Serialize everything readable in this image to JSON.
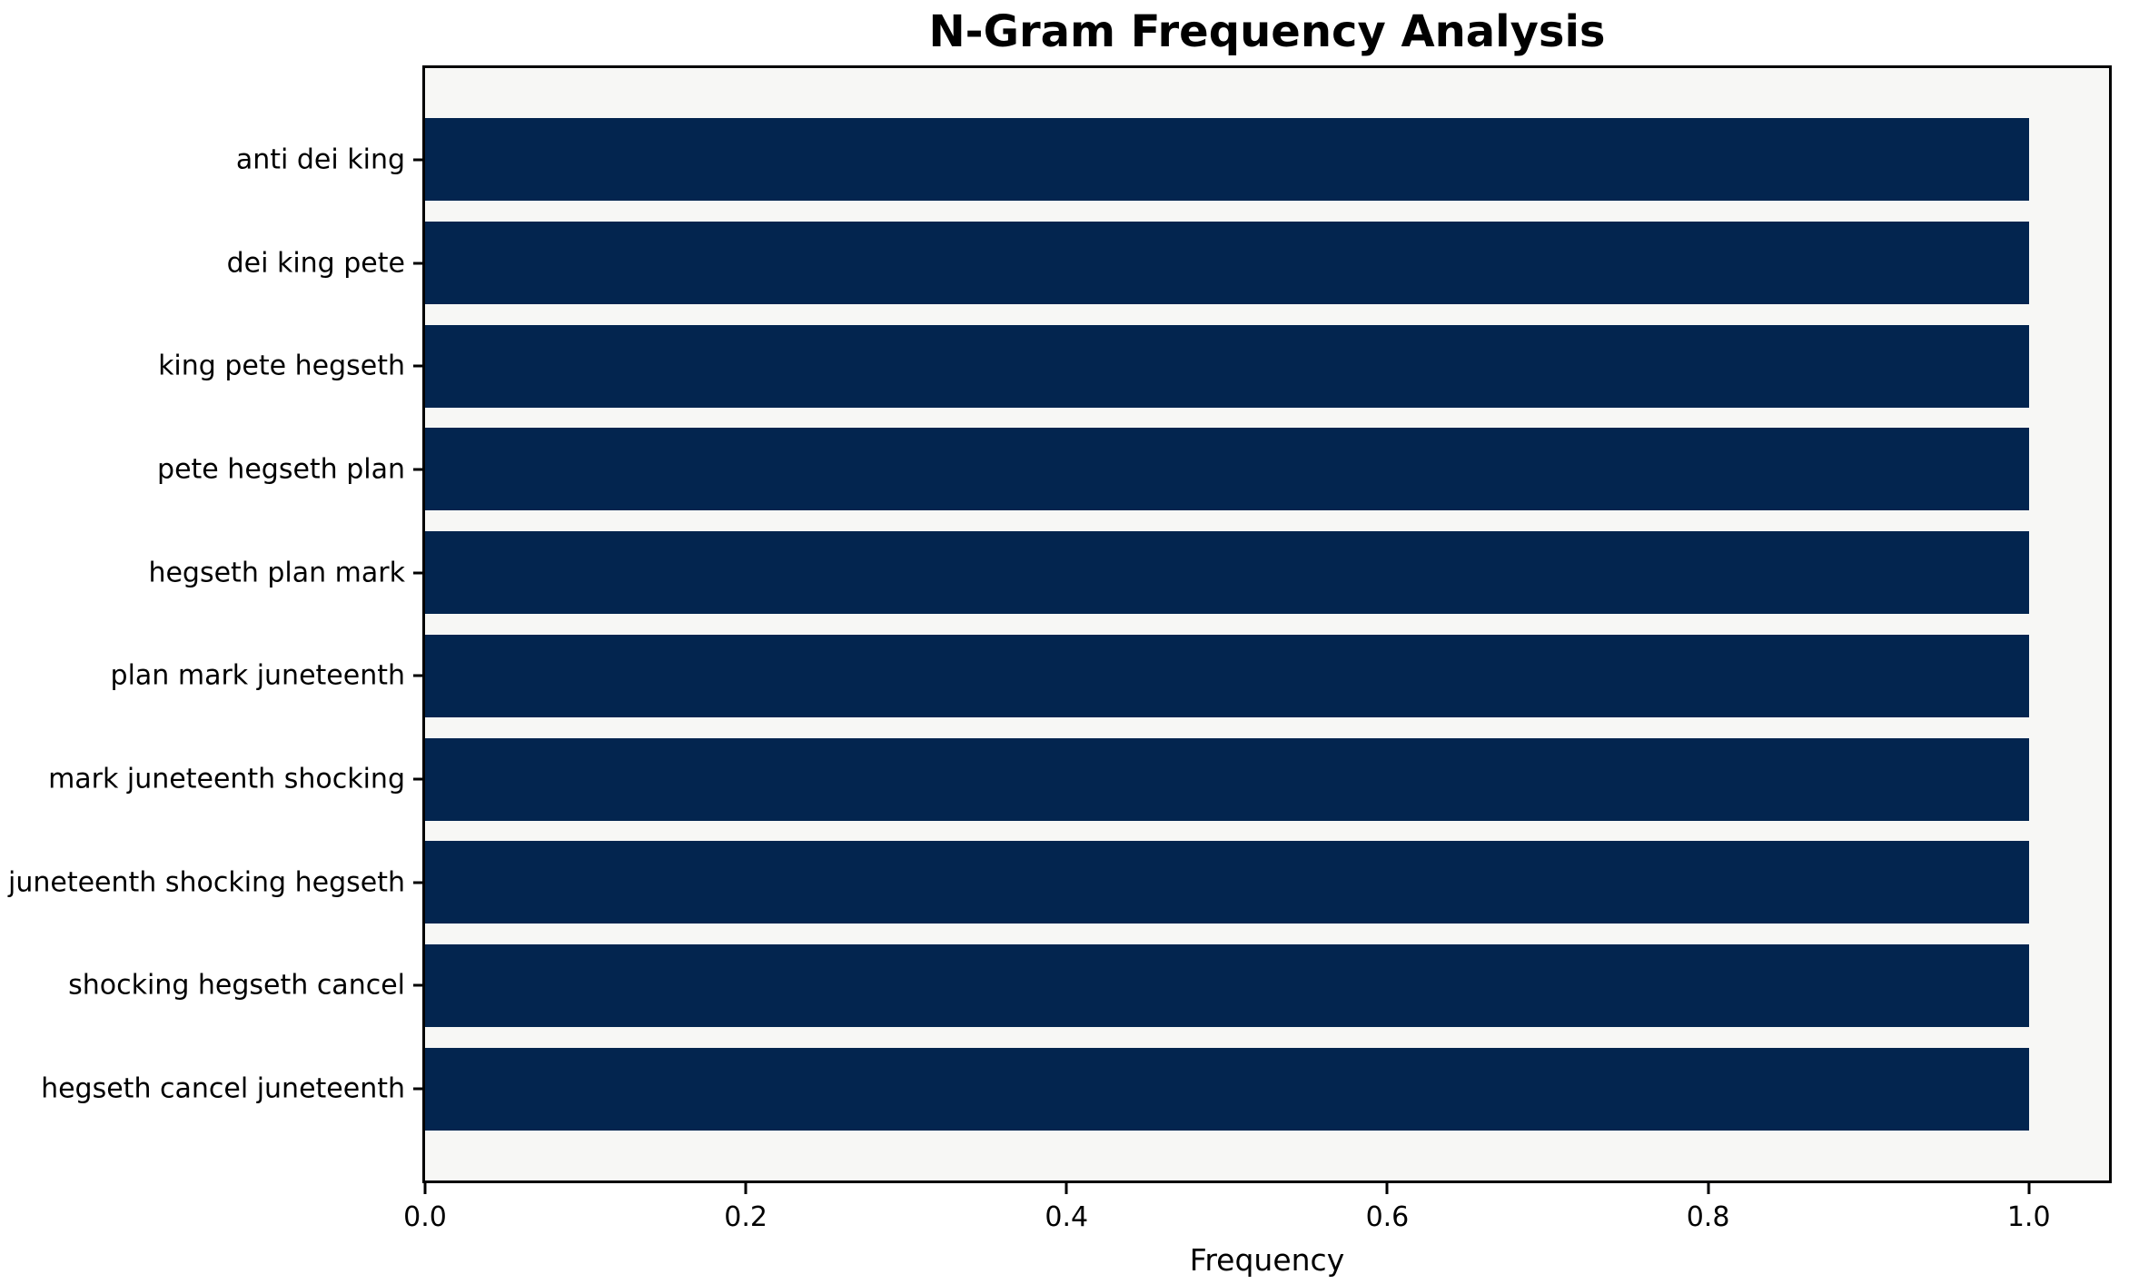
{
  "chart_data": {
    "type": "bar",
    "orientation": "horizontal",
    "title": "N-Gram Frequency Analysis",
    "xlabel": "Frequency",
    "ylabel": "",
    "categories": [
      "anti dei king",
      "dei king pete",
      "king pete hegseth",
      "pete hegseth plan",
      "hegseth plan mark",
      "plan mark juneteenth",
      "mark juneteenth shocking",
      "juneteenth shocking hegseth",
      "shocking hegseth cancel",
      "hegseth cancel juneteenth"
    ],
    "values": [
      1.0,
      1.0,
      1.0,
      1.0,
      1.0,
      1.0,
      1.0,
      1.0,
      1.0,
      1.0
    ],
    "xlim": [
      0,
      1.05
    ],
    "xtick_labels": [
      "0.0",
      "0.2",
      "0.4",
      "0.6",
      "0.8",
      "1.0"
    ],
    "xtick_values": [
      0.0,
      0.2,
      0.4,
      0.6,
      0.8,
      1.0
    ],
    "grid": false,
    "legend": null,
    "colors": {
      "bar": "#03254f",
      "plot_background": "#f7f7f5",
      "figure_background": "#ffffff",
      "axis": "#000000",
      "text": "#000000"
    }
  }
}
